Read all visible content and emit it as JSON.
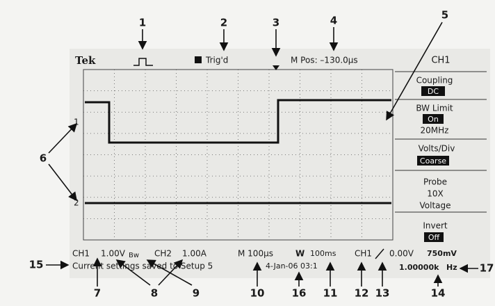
{
  "callouts": [
    "1",
    "2",
    "3",
    "4",
    "5",
    "6",
    "7",
    "8",
    "9",
    "10",
    "11",
    "12",
    "13",
    "14",
    "15",
    "16",
    "17"
  ],
  "screen": {
    "brand": "Tek",
    "trigger_status": "Trig'd",
    "m_pos": "M Pos: –130.0µs",
    "channel_markers": [
      "1",
      "2"
    ]
  },
  "menu": {
    "title": "CH1",
    "items": [
      {
        "label": "Coupling",
        "value": "DC"
      },
      {
        "label": "BW Limit",
        "value": "On",
        "extra": "20MHz"
      },
      {
        "label": "Volts/Div",
        "value": "Coarse"
      },
      {
        "label": "Probe",
        "lines": [
          "10X",
          "Voltage"
        ]
      },
      {
        "label": "Invert",
        "value": "Off"
      }
    ]
  },
  "status": {
    "ch1": "CH1",
    "ch1_scale": "1.00V",
    "bw": "Bw",
    "ch2": "CH2",
    "ch2_scale": "1.00A",
    "main_timebase": "M 100µs",
    "window_label": "W",
    "window_timebase": "100ms",
    "trigger_source": "CH1",
    "trigger_level": "0.00V",
    "level_readout": "750mV",
    "message": "Current settings saved to Setup 5",
    "datetime": "4-Jan-06 03:1",
    "frequency": "1.00000k",
    "frequency_unit": "Hz"
  }
}
